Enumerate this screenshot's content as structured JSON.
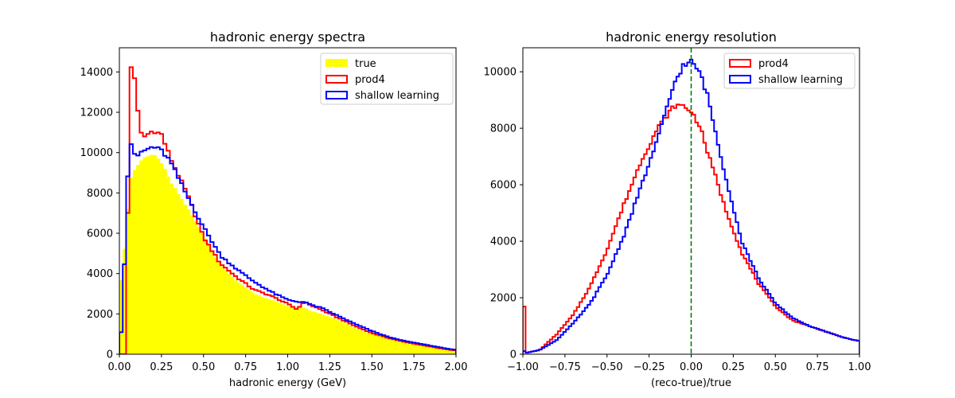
{
  "chart_data": [
    {
      "type": "histogram",
      "title": "hadronic energy spectra",
      "xlabel": "hadronic energy (GeV)",
      "ylabel": "",
      "xlim": [
        0,
        2
      ],
      "ylim": [
        0,
        15200
      ],
      "xticks": [
        0,
        0.25,
        0.5,
        0.75,
        1.0,
        1.25,
        1.5,
        1.75,
        2.0
      ],
      "xtick_labels": [
        "0.00",
        "0.25",
        "0.50",
        "0.75",
        "1.00",
        "1.25",
        "1.50",
        "1.75",
        "2.00"
      ],
      "yticks": [
        0,
        2000,
        4000,
        6000,
        8000,
        10000,
        12000,
        14000
      ],
      "ytick_labels": [
        "0",
        "2000",
        "4000",
        "6000",
        "8000",
        "10000",
        "12000",
        "14000"
      ],
      "legend_position": "top-right",
      "bin_width": 0.02,
      "x_anchors": [
        0,
        0.02,
        0.04,
        0.06,
        0.08,
        0.1,
        0.12,
        0.15,
        0.2,
        0.25,
        0.3,
        0.4,
        0.5,
        0.6,
        0.7,
        0.8,
        0.9,
        1.0,
        1.06,
        1.08,
        1.1,
        1.12,
        1.2,
        1.3,
        1.4,
        1.5,
        1.6,
        1.7,
        1.8,
        1.9,
        1.98
      ],
      "series": [
        {
          "name": "true",
          "style": "filled",
          "color": "#ffff00",
          "values": [
            3000,
            4400,
            6000,
            8500,
            9000,
            9300,
            9500,
            9800,
            9900,
            9500,
            8600,
            7300,
            5900,
            4400,
            3600,
            3000,
            2700,
            2400,
            2300,
            2300,
            2300,
            2200,
            2000,
            1700,
            1300,
            1000,
            800,
            600,
            480,
            330,
            200
          ]
        },
        {
          "name": "prod4",
          "style": "step",
          "color": "#ff0000",
          "values": [
            0,
            0,
            0,
            14000,
            14500,
            13000,
            11000,
            10800,
            11100,
            10900,
            9800,
            8000,
            5800,
            4500,
            3800,
            3200,
            2900,
            2500,
            2200,
            2500,
            2600,
            2500,
            2200,
            1800,
            1400,
            1050,
            800,
            600,
            450,
            300,
            200
          ]
        },
        {
          "name": "shallow learning",
          "style": "step",
          "color": "#0000ff",
          "values": [
            0,
            2200,
            6800,
            10900,
            10000,
            9700,
            10000,
            10100,
            10300,
            10100,
            9600,
            7900,
            6300,
            4900,
            4200,
            3600,
            3100,
            2700,
            2600,
            2600,
            2600,
            2500,
            2300,
            1900,
            1500,
            1150,
            850,
            650,
            500,
            350,
            230
          ]
        }
      ]
    },
    {
      "type": "histogram",
      "title": "hadronic energy resolution",
      "xlabel": "(reco-true)/true",
      "ylabel": "",
      "xlim": [
        -1,
        1
      ],
      "ylim": [
        0,
        10850
      ],
      "xticks": [
        -1.0,
        -0.75,
        -0.5,
        -0.25,
        0.0,
        0.25,
        0.5,
        0.75,
        1.0
      ],
      "xtick_labels": [
        "−1.00",
        "−0.75",
        "−0.50",
        "−0.25",
        "0.00",
        "0.25",
        "0.50",
        "0.75",
        "1.00"
      ],
      "yticks": [
        0,
        2000,
        4000,
        6000,
        8000,
        10000
      ],
      "ytick_labels": [
        "0",
        "2000",
        "4000",
        "6000",
        "8000",
        "10000"
      ],
      "vline": {
        "x": 0.0,
        "color": "#008000",
        "style": "dashed"
      },
      "legend_position": "top-right",
      "bin_width": 0.016,
      "x_anchors": [
        -1.0,
        -0.98,
        -0.9,
        -0.8,
        -0.7,
        -0.6,
        -0.5,
        -0.4,
        -0.3,
        -0.2,
        -0.15,
        -0.1,
        -0.05,
        0.0,
        0.05,
        0.1,
        0.15,
        0.2,
        0.3,
        0.4,
        0.5,
        0.6,
        0.7,
        0.8,
        0.9,
        0.984
      ],
      "series": [
        {
          "name": "prod4",
          "style": "step",
          "color": "#ff0000",
          "values": [
            2800,
            50,
            150,
            700,
            1400,
            2400,
            3700,
            5300,
            6800,
            8000,
            8400,
            8800,
            8800,
            8600,
            8100,
            7100,
            6200,
            5200,
            3600,
            2500,
            1700,
            1200,
            1000,
            800,
            600,
            480
          ]
        },
        {
          "name": "shallow learning",
          "style": "step",
          "color": "#0000ff",
          "values": [
            150,
            50,
            150,
            500,
            1100,
            1800,
            2800,
            4200,
            5900,
            7600,
            8600,
            9600,
            10200,
            10350,
            10000,
            9100,
            7700,
            6400,
            4000,
            2700,
            1800,
            1300,
            1000,
            800,
            600,
            480
          ]
        }
      ]
    }
  ]
}
